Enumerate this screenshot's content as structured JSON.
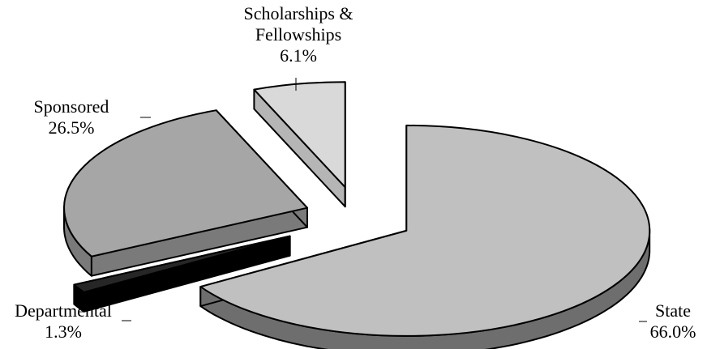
{
  "chart_data": {
    "type": "pie",
    "style": "3d-exploded",
    "title": "",
    "slices": [
      {
        "name": "State",
        "line1": "State",
        "line2": "",
        "value_label": "66.0%",
        "value": 66.0,
        "top": "#c0c0c0",
        "side": "#6e6e6e"
      },
      {
        "name": "Departmental",
        "line1": "Departmental",
        "line2": "",
        "value_label": "1.3%",
        "value": 1.3,
        "top": "#262626",
        "side": "#000000"
      },
      {
        "name": "Sponsored",
        "line1": "Sponsored",
        "line2": "",
        "value_label": "26.5%",
        "value": 26.5,
        "top": "#a6a6a6",
        "side": "#7a7a7a"
      },
      {
        "name": "Scholarships & Fellowships",
        "line1": "Scholarships &",
        "line2": "Fellowships",
        "value_label": "6.1%",
        "value": 6.1,
        "top": "#d9d9d9",
        "side": "#b5b5b5"
      }
    ],
    "legend": "none"
  }
}
